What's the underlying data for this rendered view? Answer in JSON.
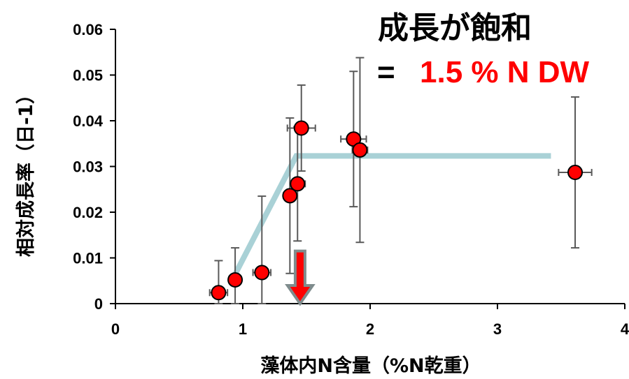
{
  "chart_data": {
    "type": "scatter",
    "xlabel": "藻体内N含量（%N乾重）",
    "ylabel": "相対成長率（日-1）",
    "xlim": [
      0,
      4
    ],
    "ylim": [
      0,
      0.06
    ],
    "xticks": [
      "0",
      "1",
      "2",
      "3",
      "4"
    ],
    "yticks": [
      "0",
      "0.01",
      "0.02",
      "0.03",
      "0.04",
      "0.05",
      "0.06"
    ],
    "grid": false,
    "points": [
      {
        "x": 0.81,
        "y": 0.0024,
        "xerr": 0.07,
        "yerr_low": 0.0024,
        "yerr_high": 0.007
      },
      {
        "x": 0.94,
        "y": 0.0052,
        "xerr": 0.04,
        "yerr_low": 0.0052,
        "yerr_high": 0.007
      },
      {
        "x": 1.15,
        "y": 0.0068,
        "xerr": 0.07,
        "yerr_low": 0.0068,
        "yerr_high": 0.0167
      },
      {
        "x": 1.37,
        "y": 0.0236,
        "xerr": 0.05,
        "yerr_low": 0.017,
        "yerr_high": 0.017
      },
      {
        "x": 1.43,
        "y": 0.0262,
        "xerr": 0.06,
        "yerr_low": 0.0125,
        "yerr_high": 0.0125
      },
      {
        "x": 1.46,
        "y": 0.0384,
        "xerr": 0.11,
        "yerr_low": 0.0094,
        "yerr_high": 0.0094
      },
      {
        "x": 1.87,
        "y": 0.036,
        "xerr": 0.1,
        "yerr_low": 0.0148,
        "yerr_high": 0.0148
      },
      {
        "x": 1.92,
        "y": 0.0336,
        "xerr": 0.06,
        "yerr_low": 0.0202,
        "yerr_high": 0.0202
      },
      {
        "x": 3.61,
        "y": 0.0287,
        "xerr": 0.13,
        "yerr_low": 0.0165,
        "yerr_high": 0.0165
      }
    ],
    "fit_line": {
      "x": [
        0.91,
        1.42,
        3.42
      ],
      "y": [
        0.0048,
        0.0323,
        0.0323
      ],
      "color": "#a9d1d6"
    },
    "arrow": {
      "x": 1.45,
      "y_top": 0.0115,
      "y_bottom": 0.0,
      "color": "#ff0000"
    },
    "annotation": {
      "title": "成長が飽和",
      "equals": "=",
      "value": "1.5 % N DW"
    },
    "colors": {
      "point_fill": "#ff0000",
      "point_stroke": "#000000",
      "error_bar": "#595959",
      "axis": "#000000",
      "value_text": "#ff0000"
    }
  }
}
